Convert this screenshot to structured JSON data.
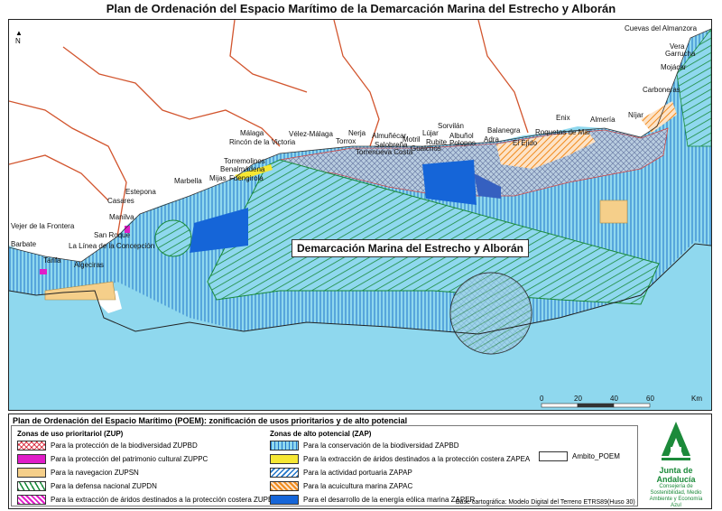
{
  "title": "Plan de Ordenación del Espacio Marítimo de la Demarcación  Marina del Estrecho y Alborán",
  "north_label": "N",
  "main_label": "Demarcación Marina del Estrecho y Alborán",
  "places": [
    {
      "name": "Cuevas del Almanzora"
    },
    {
      "name": "Vera"
    },
    {
      "name": "Garrucha"
    },
    {
      "name": "Mojácar"
    },
    {
      "name": "Carboneras"
    },
    {
      "name": "Níjar"
    },
    {
      "name": "Enix"
    },
    {
      "name": "Almería"
    },
    {
      "name": "Roquetas de Mar"
    },
    {
      "name": "El Ejido"
    },
    {
      "name": "Balanegra"
    },
    {
      "name": "Adra"
    },
    {
      "name": "Sorvilán"
    },
    {
      "name": "Lújar"
    },
    {
      "name": "Albuñol"
    },
    {
      "name": "Rubite"
    },
    {
      "name": "Polopos"
    },
    {
      "name": "Gualchos"
    },
    {
      "name": "Almuñécar"
    },
    {
      "name": "Motril"
    },
    {
      "name": "Salobreña"
    },
    {
      "name": "Torrenueva Costa"
    },
    {
      "name": "Nerja"
    },
    {
      "name": "Torrox"
    },
    {
      "name": "Vélez-Málaga"
    },
    {
      "name": "Málaga"
    },
    {
      "name": "Rincón de la Victoria"
    },
    {
      "name": "Torremolinos"
    },
    {
      "name": "Benalmádena"
    },
    {
      "name": "Mijas"
    },
    {
      "name": "Fuengirola"
    },
    {
      "name": "Marbella"
    },
    {
      "name": "Estepona"
    },
    {
      "name": "Casares"
    },
    {
      "name": "Manilva"
    },
    {
      "name": "San Roque"
    },
    {
      "name": "La Línea de la Concepción"
    },
    {
      "name": "Algeciras"
    },
    {
      "name": "Tarifa"
    },
    {
      "name": "Vejer de la Frontera"
    },
    {
      "name": "Barbate"
    }
  ],
  "scale": {
    "ticks": [
      "0",
      "20",
      "40",
      "60"
    ],
    "unit": "Km"
  },
  "legend": {
    "title": "Plan de Ordenación del Espacio Marítimo (POEM): zonificación de usos prioritarios y de alto potencial",
    "zup_title": "Zonas de uso prioritariol (ZUP)",
    "zup_items": [
      {
        "label": "Para la protección de la biodiversidad ZUPBD",
        "swatch": "crosshatch-pink"
      },
      {
        "label": "Para la protección del patrimonio cultural ZUPPC",
        "swatch": "magenta"
      },
      {
        "label": "Para la navegacion ZUPSN",
        "swatch": "sand"
      },
      {
        "label": "Para la defensa nacional ZUPDN",
        "swatch": "green-diagonal"
      },
      {
        "label": "Para la extracción de áridos destinados a la protección costera ZUPEA",
        "swatch": "magenta-stripe"
      }
    ],
    "zap_title": "Zonas de alto potencial (ZAP)",
    "zap_items": [
      {
        "label": "Para la conservación de la biodiversidad ZAPBD",
        "swatch": "blue-vertical"
      },
      {
        "label": "Para la extracción de áridos destinados a la protección costera ZAPEA",
        "swatch": "yellow"
      },
      {
        "label": "Para la actividad portuaria ZAPAP",
        "swatch": "blue-diagonal"
      },
      {
        "label": "Para la acuicultura marina ZAPAC",
        "swatch": "orange-diagonal"
      },
      {
        "label": "Para el desarrollo de la energía eólica marina ZAPER",
        "swatch": "blue-solid"
      }
    ],
    "ambito_label": "Ambito_POEM",
    "base_note": "Base cartográfica: Modelo Digital del Terreno ETRS89(Huso 30)"
  },
  "logo": {
    "name": "Junta de Andalucía",
    "subtitle": "Consejería de Sostenibilidad, Medio Ambiente y Economía Azul"
  },
  "colors": {
    "sea": "#8fd8ee",
    "land": "#ffffff",
    "province_border": "#d2552e",
    "zap_bd": "#1f74c9",
    "zup_dn": "#1a8a3a",
    "zaper": "#1565d8",
    "zupsn": "#f5cf8a"
  }
}
